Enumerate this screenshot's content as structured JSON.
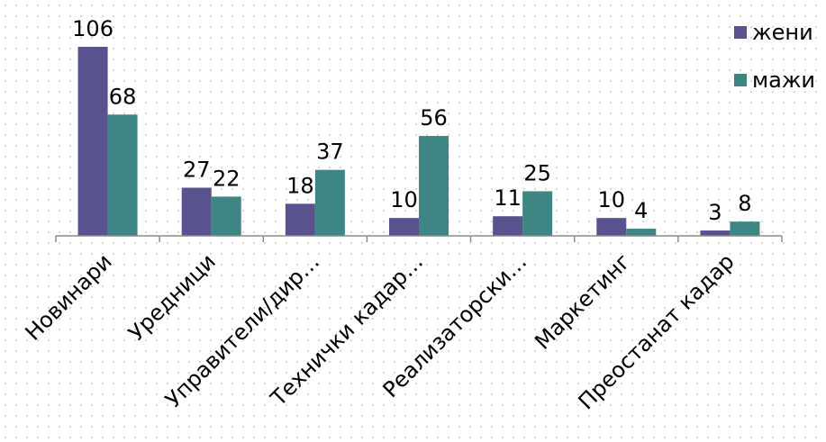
{
  "chart_data": {
    "type": "bar",
    "categories": [
      "Новинари",
      "Уредници",
      "Управители/дир…",
      "Технички кадар…",
      "Реализаторски…",
      "Маркетинг",
      "Преостанат кадар"
    ],
    "series": [
      {
        "name": "жени",
        "color": "#58528f",
        "values": [
          106,
          27,
          18,
          10,
          11,
          10,
          3
        ]
      },
      {
        "name": "мажи",
        "color": "#3e8683",
        "values": [
          68,
          22,
          37,
          56,
          25,
          4,
          8
        ]
      }
    ],
    "legend": "top-right"
  }
}
